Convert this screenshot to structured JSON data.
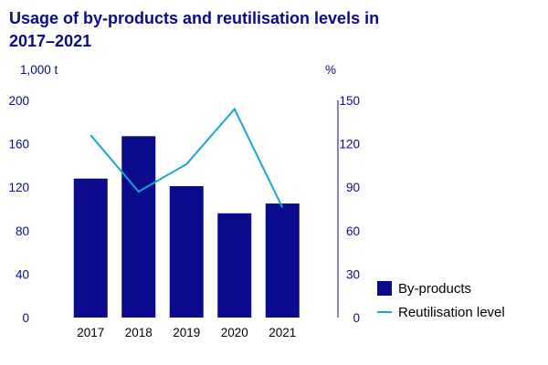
{
  "chart_data": {
    "type": "bar",
    "title": "Usage of by-products and reutilisation levels in 2017–2021",
    "left_unit": "1,000 t",
    "right_unit": "%",
    "categories": [
      "2017",
      "2018",
      "2019",
      "2020",
      "2021"
    ],
    "left_ylim": [
      0,
      200
    ],
    "left_ticks": [
      0,
      40,
      80,
      120,
      160,
      200
    ],
    "right_ylim": [
      0,
      150
    ],
    "right_ticks": [
      0,
      30,
      60,
      90,
      120,
      150
    ],
    "series": [
      {
        "name": "By-products",
        "type": "bar",
        "axis": "left",
        "values": [
          128,
          167,
          121,
          96,
          105
        ]
      },
      {
        "name": "Reutilisation level",
        "type": "line",
        "axis": "right",
        "values": [
          126,
          87,
          106,
          144,
          76
        ]
      }
    ],
    "grid": false,
    "legend_position": "right",
    "colors": {
      "bars": "#0a0a8c",
      "line": "#1aa7c9",
      "text": "#0a0a8c"
    }
  }
}
